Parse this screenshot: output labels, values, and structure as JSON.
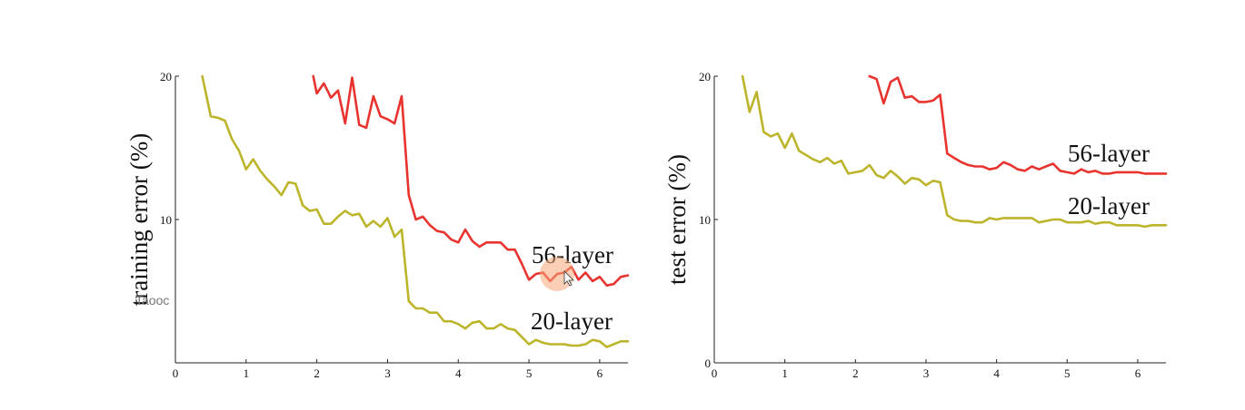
{
  "colors": {
    "series_56": "#e8332f",
    "series_20": "#bcb52c",
    "axis": "#222222",
    "cursor_highlight": "#f5a878"
  },
  "overlay": {
    "watermark_text": "Taooc",
    "cursor_icon": "mouse-pointer-icon"
  },
  "chart_data": [
    {
      "type": "line",
      "ylabel": "training error (%)",
      "xlim": [
        0,
        6.4
      ],
      "ylim": [
        0,
        20
      ],
      "xticks": [
        0,
        1,
        2,
        3,
        4,
        5,
        6
      ],
      "xtick_labels": [
        "0",
        "1",
        "2",
        "3",
        "4",
        "5",
        "6"
      ],
      "yticks": [
        10,
        20
      ],
      "ytick_labels": [
        "10",
        "20"
      ],
      "grid": false,
      "series": [
        {
          "name": "56-layer",
          "color": "#e8332f",
          "x": [
            1.95,
            2.0,
            2.1,
            2.2,
            2.3,
            2.4,
            2.5,
            2.6,
            2.7,
            2.8,
            2.9,
            3.0,
            3.1,
            3.2,
            3.3,
            3.4,
            3.5,
            3.6,
            3.7,
            3.8,
            3.9,
            4.0,
            4.1,
            4.2,
            4.3,
            4.4,
            4.5,
            4.6,
            4.7,
            4.8,
            4.9,
            5.0,
            5.1,
            5.2,
            5.3,
            5.4,
            5.5,
            5.6,
            5.7,
            5.8,
            5.9,
            6.0,
            6.1,
            6.2,
            6.3,
            6.4
          ],
          "y": [
            20.0,
            18.8,
            19.5,
            18.5,
            19.0,
            16.7,
            19.9,
            16.6,
            16.4,
            18.6,
            17.2,
            17.0,
            16.7,
            18.6,
            11.7,
            10.0,
            10.2,
            9.6,
            9.2,
            9.1,
            8.6,
            8.4,
            9.3,
            8.5,
            8.1,
            8.4,
            8.4,
            8.4,
            7.9,
            7.9,
            6.9,
            5.8,
            6.2,
            6.3,
            5.7,
            6.2,
            6.3,
            6.7,
            5.8,
            6.3,
            5.7,
            6.0,
            5.4,
            5.5,
            6.0,
            6.1
          ]
        },
        {
          "name": "20-layer",
          "color": "#bcb52c",
          "x": [
            0.38,
            0.5,
            0.6,
            0.7,
            0.8,
            0.9,
            1.0,
            1.1,
            1.2,
            1.3,
            1.4,
            1.5,
            1.6,
            1.7,
            1.8,
            1.9,
            2.0,
            2.1,
            2.2,
            2.3,
            2.4,
            2.5,
            2.6,
            2.7,
            2.8,
            2.9,
            3.0,
            3.1,
            3.2,
            3.3,
            3.4,
            3.5,
            3.6,
            3.7,
            3.8,
            3.9,
            4.0,
            4.1,
            4.2,
            4.3,
            4.4,
            4.5,
            4.6,
            4.7,
            4.8,
            4.9,
            5.0,
            5.1,
            5.2,
            5.3,
            5.4,
            5.5,
            5.6,
            5.7,
            5.8,
            5.9,
            6.0,
            6.1,
            6.2,
            6.3,
            6.4
          ],
          "y": [
            20.0,
            17.2,
            17.1,
            16.9,
            15.6,
            14.8,
            13.5,
            14.2,
            13.4,
            12.8,
            12.3,
            11.7,
            12.6,
            12.5,
            11.0,
            10.6,
            10.7,
            9.7,
            9.7,
            10.2,
            10.6,
            10.3,
            10.4,
            9.5,
            9.9,
            9.5,
            10.1,
            8.8,
            9.3,
            4.3,
            3.8,
            3.8,
            3.5,
            3.5,
            2.9,
            2.9,
            2.7,
            2.4,
            2.8,
            2.9,
            2.4,
            2.4,
            2.7,
            2.4,
            2.3,
            1.8,
            1.3,
            1.6,
            1.4,
            1.3,
            1.3,
            1.3,
            1.2,
            1.2,
            1.3,
            1.6,
            1.5,
            1.1,
            1.3,
            1.5,
            1.5
          ]
        }
      ]
    },
    {
      "type": "line",
      "ylabel": "test error (%)",
      "xlim": [
        0,
        6.4
      ],
      "ylim": [
        0,
        20
      ],
      "xticks": [
        0,
        1,
        2,
        3,
        4,
        5,
        6
      ],
      "xtick_labels": [
        "0",
        "1",
        "2",
        "3",
        "4",
        "5",
        "6"
      ],
      "yticks": [
        0,
        10,
        20
      ],
      "ytick_labels": [
        "0",
        "10",
        "20"
      ],
      "grid": false,
      "series": [
        {
          "name": "56-layer",
          "color": "#e8332f",
          "x": [
            2.2,
            2.3,
            2.4,
            2.5,
            2.6,
            2.7,
            2.8,
            2.9,
            3.0,
            3.1,
            3.2,
            3.3,
            3.4,
            3.5,
            3.6,
            3.7,
            3.8,
            3.9,
            4.0,
            4.1,
            4.2,
            4.3,
            4.4,
            4.5,
            4.6,
            4.7,
            4.8,
            4.9,
            5.0,
            5.1,
            5.2,
            5.3,
            5.4,
            5.5,
            5.6,
            5.7,
            5.8,
            5.9,
            6.0,
            6.1,
            6.2,
            6.3,
            6.4
          ],
          "y": [
            20.0,
            19.8,
            18.1,
            19.6,
            19.9,
            18.5,
            18.6,
            18.2,
            18.2,
            18.3,
            18.7,
            14.6,
            14.3,
            14.0,
            13.8,
            13.7,
            13.7,
            13.5,
            13.6,
            14.0,
            13.8,
            13.5,
            13.4,
            13.7,
            13.5,
            13.7,
            13.9,
            13.4,
            13.3,
            13.2,
            13.5,
            13.3,
            13.4,
            13.2,
            13.2,
            13.3,
            13.3,
            13.3,
            13.3,
            13.2,
            13.2,
            13.2,
            13.2
          ]
        },
        {
          "name": "20-layer",
          "color": "#bcb52c",
          "x": [
            0.4,
            0.5,
            0.6,
            0.7,
            0.8,
            0.9,
            1.0,
            1.1,
            1.2,
            1.3,
            1.4,
            1.5,
            1.6,
            1.7,
            1.8,
            1.9,
            2.0,
            2.1,
            2.2,
            2.3,
            2.4,
            2.5,
            2.6,
            2.7,
            2.8,
            2.9,
            3.0,
            3.1,
            3.2,
            3.3,
            3.4,
            3.5,
            3.6,
            3.7,
            3.8,
            3.9,
            4.0,
            4.1,
            4.2,
            4.3,
            4.4,
            4.5,
            4.6,
            4.7,
            4.8,
            4.9,
            5.0,
            5.1,
            5.2,
            5.3,
            5.4,
            5.5,
            5.6,
            5.7,
            5.8,
            5.9,
            6.0,
            6.1,
            6.2,
            6.3,
            6.4
          ],
          "y": [
            20.0,
            17.5,
            18.9,
            16.1,
            15.8,
            16.0,
            15.0,
            16.0,
            14.8,
            14.5,
            14.2,
            14.0,
            14.3,
            13.9,
            14.1,
            13.2,
            13.3,
            13.4,
            13.8,
            13.1,
            12.9,
            13.4,
            13.0,
            12.5,
            12.9,
            12.8,
            12.4,
            12.7,
            12.6,
            10.3,
            10.0,
            9.9,
            9.9,
            9.8,
            9.8,
            10.1,
            10.0,
            10.1,
            10.1,
            10.1,
            10.1,
            10.1,
            9.8,
            9.9,
            10.0,
            10.0,
            9.8,
            9.8,
            9.8,
            9.9,
            9.7,
            9.8,
            9.8,
            9.6,
            9.6,
            9.6,
            9.6,
            9.5,
            9.6,
            9.6,
            9.6
          ]
        }
      ]
    }
  ]
}
